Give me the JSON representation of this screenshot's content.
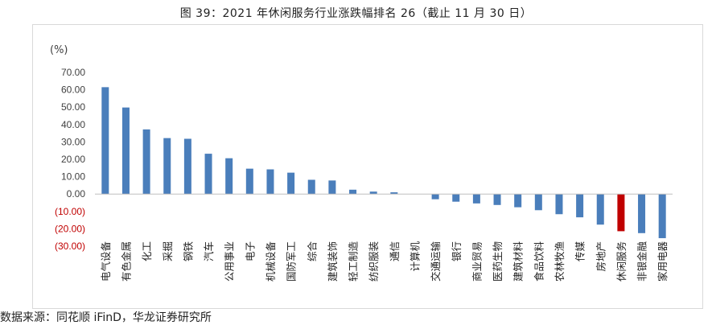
{
  "title": "图 39：2021 年休闲服务行业涨跌幅排名 26（截止 11 月 30 日）",
  "source": "数据来源：同花顺 iFinD，华龙证券研究所",
  "colors": {
    "bar": "#4a7ebb",
    "highlight": "#c00000",
    "negative_label": "#c00000",
    "axis_text": "#404040"
  },
  "chart_data": {
    "type": "bar",
    "unit_label": "(%)",
    "ylim": [
      -30,
      70
    ],
    "yticks": [
      {
        "value": 70,
        "label": "70.00"
      },
      {
        "value": 60,
        "label": "60.00"
      },
      {
        "value": 50,
        "label": "50.00"
      },
      {
        "value": 40,
        "label": "40.00"
      },
      {
        "value": 30,
        "label": "30.00"
      },
      {
        "value": 20,
        "label": "20.00"
      },
      {
        "value": 10,
        "label": "10.00"
      },
      {
        "value": 0,
        "label": "0.00"
      },
      {
        "value": -10,
        "label": "(10.00)"
      },
      {
        "value": -20,
        "label": "(20.00)"
      },
      {
        "value": -30,
        "label": "(30.00)"
      }
    ],
    "categories": [
      "电气设备",
      "有色金属",
      "化工",
      "采掘",
      "钢铁",
      "汽车",
      "公用事业",
      "电子",
      "机械设备",
      "国防军工",
      "综合",
      "建筑装饰",
      "轻工制造",
      "纺织服装",
      "通信",
      "计算机",
      "交通运输",
      "银行",
      "商业贸易",
      "医药生物",
      "建筑材料",
      "食品饮料",
      "农林牧渔",
      "传媒",
      "房地产",
      "休闲服务",
      "非银金融",
      "家用电器"
    ],
    "values": [
      61.5,
      49.8,
      37.2,
      32.2,
      31.8,
      23.2,
      20.6,
      14.6,
      14.2,
      12.3,
      8.2,
      7.8,
      2.5,
      1.4,
      1.0,
      0.0,
      -3.0,
      -4.4,
      -5.4,
      -6.3,
      -7.6,
      -9.3,
      -11.6,
      -13.4,
      -17.6,
      -21.4,
      -22.5,
      -25.4
    ],
    "highlight": "休闲服务"
  }
}
